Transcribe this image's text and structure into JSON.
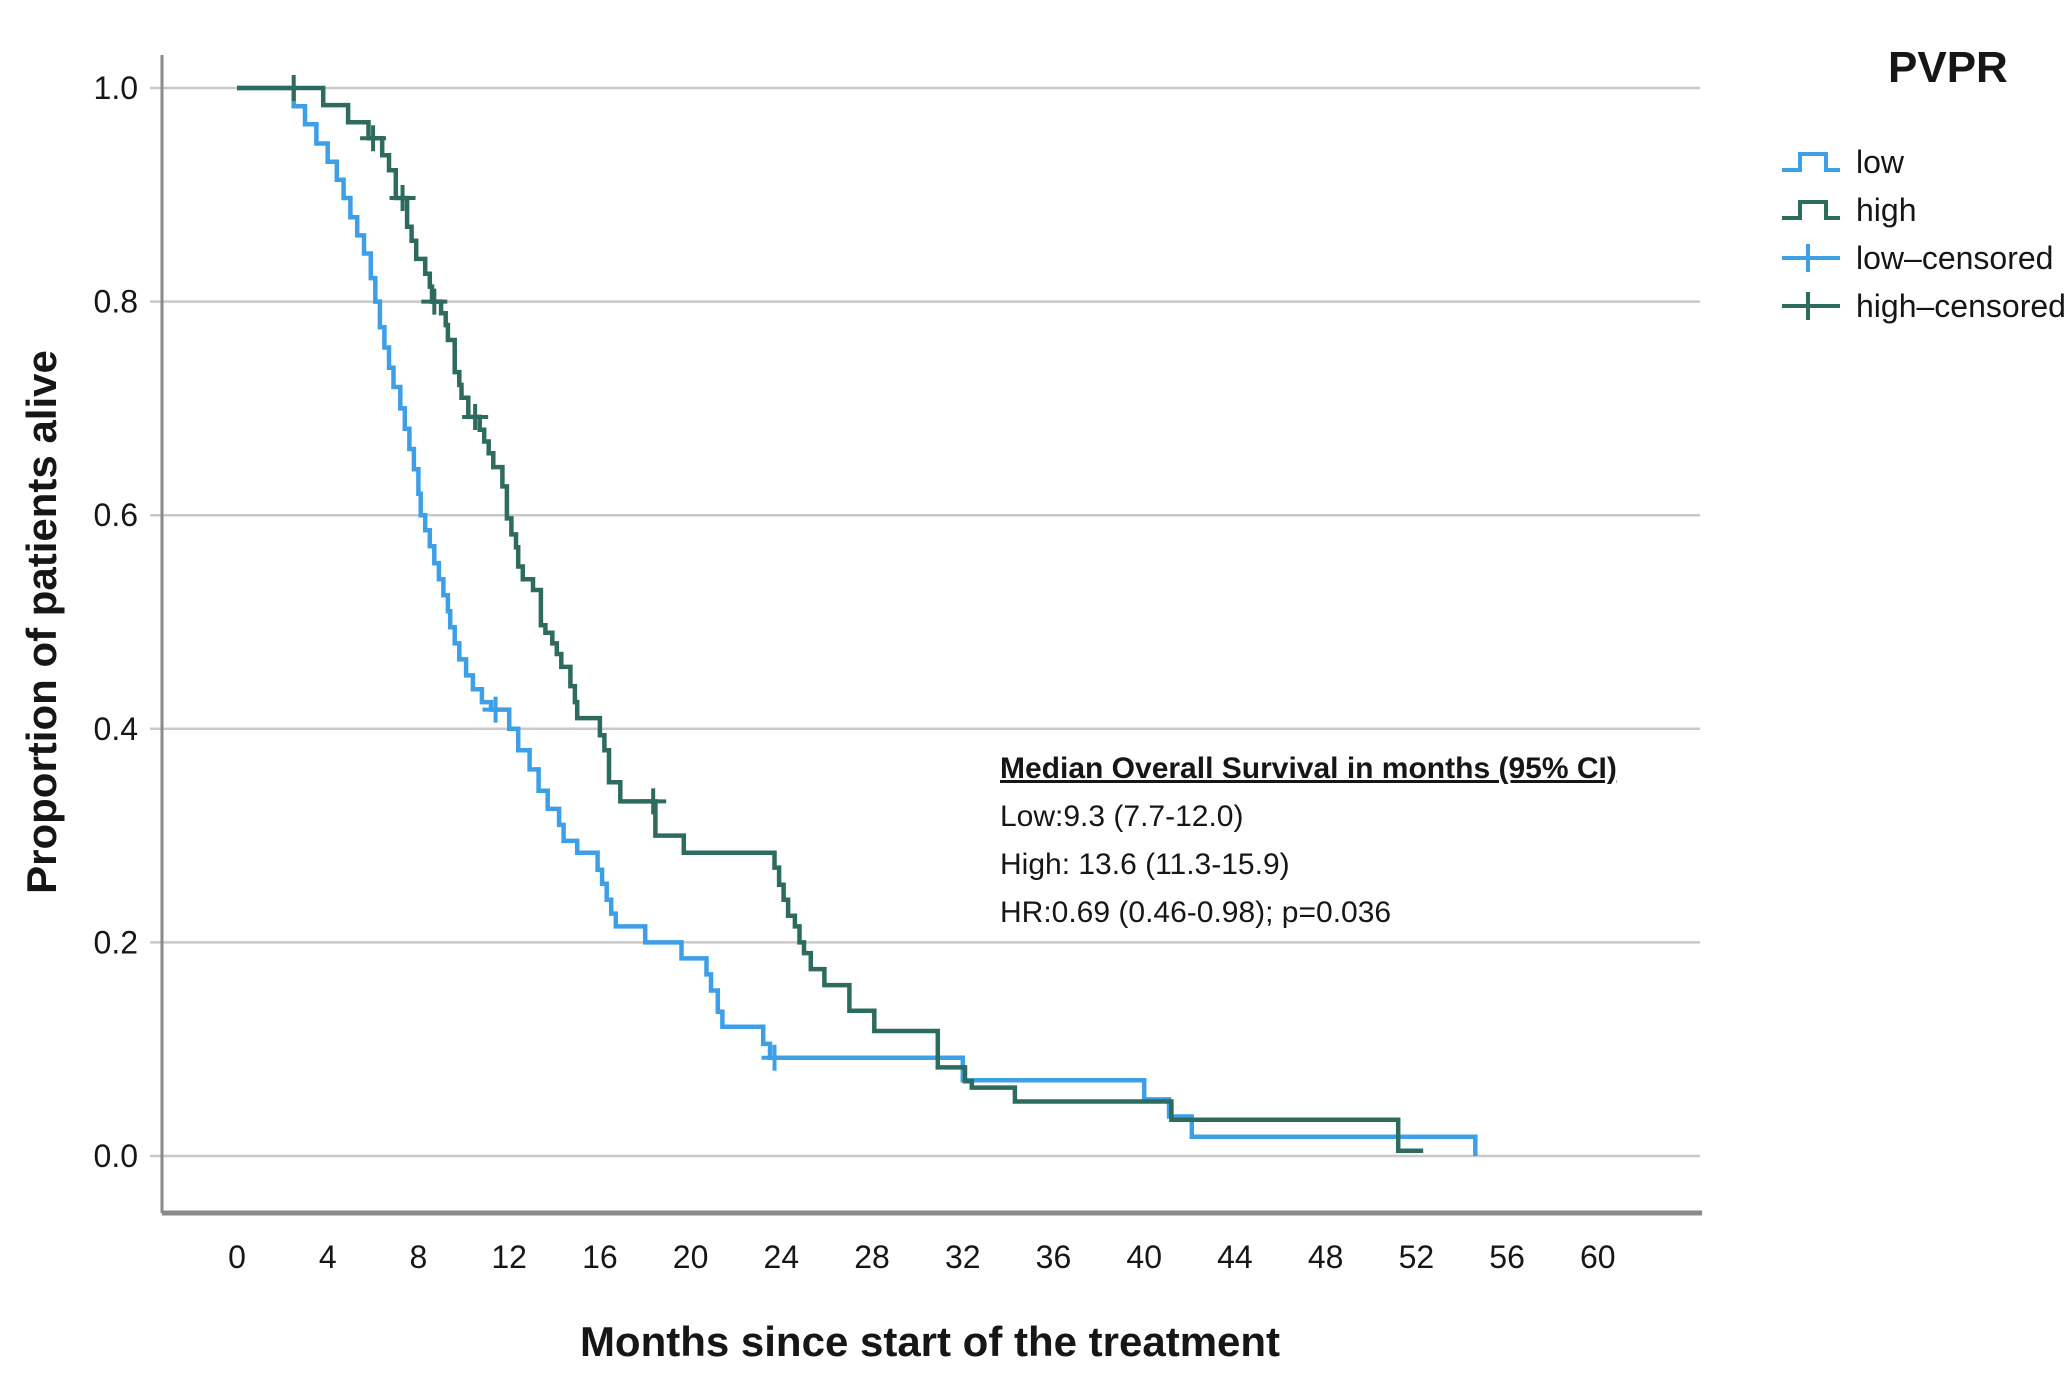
{
  "axes": {
    "x_title": "Months since start of the treatment",
    "y_title": "Proportion of patients alive"
  },
  "legend": {
    "title": "PVPR",
    "items": [
      {
        "label": "low",
        "type": "step",
        "color": "#3d9fe8"
      },
      {
        "label": "high",
        "type": "step",
        "color": "#2e6b5f"
      },
      {
        "label": "low–censored",
        "type": "plus",
        "color": "#3d9fe8"
      },
      {
        "label": "high–censored",
        "type": "plus",
        "color": "#2e6b5f"
      }
    ]
  },
  "annotation": {
    "title": "Median Overall Survival in months (95% CI)",
    "lines": [
      "Low:9.3  (7.7-12.0)",
      "High: 13.6 (11.3-15.9)",
      "HR:0.69 (0.46-0.98); p=0.036"
    ]
  },
  "chart_data": {
    "type": "line",
    "subtype": "kaplan-meier-step",
    "title": "",
    "xlabel": "Months since start of the treatment",
    "ylabel": "Proportion of patients alive",
    "xlim": [
      0,
      64
    ],
    "ylim": [
      0.0,
      1.0
    ],
    "xticks": [
      0,
      4,
      8,
      12,
      16,
      20,
      24,
      28,
      32,
      36,
      40,
      44,
      48,
      52,
      56,
      60
    ],
    "yticks": [
      0.0,
      0.2,
      0.4,
      0.6,
      0.8,
      1.0
    ],
    "ytick_labels": [
      "0.0",
      "0.2",
      "0.4",
      "0.6",
      "0.8",
      "1.0"
    ],
    "grid": "horizontal",
    "legend_position": "right",
    "colors": {
      "low": "#3d9fe8",
      "high": "#2e6b5f",
      "grid": "#c9c9c9",
      "frame": "#8a8a8a"
    },
    "series": [
      {
        "name": "low",
        "median_os_months": 9.3,
        "ci95": [
          7.7,
          12.0
        ],
        "steps": [
          [
            0,
            1.0
          ],
          [
            2.5,
            0.983
          ],
          [
            3.0,
            0.966
          ],
          [
            3.5,
            0.948
          ],
          [
            4.0,
            0.931
          ],
          [
            4.4,
            0.914
          ],
          [
            4.7,
            0.897
          ],
          [
            5.0,
            0.879
          ],
          [
            5.3,
            0.862
          ],
          [
            5.6,
            0.845
          ],
          [
            5.9,
            0.822
          ],
          [
            6.1,
            0.8
          ],
          [
            6.3,
            0.776
          ],
          [
            6.5,
            0.757
          ],
          [
            6.7,
            0.738
          ],
          [
            6.9,
            0.72
          ],
          [
            7.2,
            0.7
          ],
          [
            7.4,
            0.681
          ],
          [
            7.6,
            0.662
          ],
          [
            7.8,
            0.643
          ],
          [
            8.0,
            0.62
          ],
          [
            8.1,
            0.6
          ],
          [
            8.3,
            0.586
          ],
          [
            8.5,
            0.571
          ],
          [
            8.7,
            0.555
          ],
          [
            8.9,
            0.54
          ],
          [
            9.1,
            0.525
          ],
          [
            9.3,
            0.51
          ],
          [
            9.4,
            0.495
          ],
          [
            9.6,
            0.48
          ],
          [
            9.8,
            0.465
          ],
          [
            10.1,
            0.45
          ],
          [
            10.4,
            0.437
          ],
          [
            10.8,
            0.425
          ],
          [
            11.2,
            0.418
          ],
          [
            12.0,
            0.4
          ],
          [
            12.4,
            0.38
          ],
          [
            12.9,
            0.362
          ],
          [
            13.3,
            0.342
          ],
          [
            13.7,
            0.325
          ],
          [
            14.2,
            0.31
          ],
          [
            14.4,
            0.295
          ],
          [
            15.0,
            0.284
          ],
          [
            15.9,
            0.268
          ],
          [
            16.1,
            0.255
          ],
          [
            16.3,
            0.24
          ],
          [
            16.5,
            0.227
          ],
          [
            16.7,
            0.215
          ],
          [
            18.0,
            0.2
          ],
          [
            19.6,
            0.185
          ],
          [
            20.7,
            0.17
          ],
          [
            20.9,
            0.155
          ],
          [
            21.2,
            0.135
          ],
          [
            21.4,
            0.121
          ],
          [
            23.2,
            0.105
          ],
          [
            23.5,
            0.092
          ],
          [
            32.0,
            0.071
          ],
          [
            40.0,
            0.053
          ],
          [
            41.1,
            0.037
          ],
          [
            42.1,
            0.018
          ],
          [
            54.6,
            0.0
          ]
        ],
        "censored": [
          [
            11.4,
            0.418
          ],
          [
            23.7,
            0.092
          ]
        ]
      },
      {
        "name": "high",
        "median_os_months": 13.6,
        "ci95": [
          11.3,
          15.9
        ],
        "steps": [
          [
            0,
            1.0
          ],
          [
            3.8,
            0.984
          ],
          [
            4.9,
            0.968
          ],
          [
            5.8,
            0.953
          ],
          [
            6.4,
            0.937
          ],
          [
            6.7,
            0.923
          ],
          [
            7.0,
            0.897
          ],
          [
            7.5,
            0.87
          ],
          [
            7.7,
            0.857
          ],
          [
            7.9,
            0.84
          ],
          [
            8.3,
            0.826
          ],
          [
            8.5,
            0.814
          ],
          [
            8.6,
            0.8
          ],
          [
            9.0,
            0.789
          ],
          [
            9.2,
            0.778
          ],
          [
            9.3,
            0.764
          ],
          [
            9.6,
            0.734
          ],
          [
            9.8,
            0.722
          ],
          [
            9.9,
            0.71
          ],
          [
            10.2,
            0.692
          ],
          [
            10.7,
            0.68
          ],
          [
            10.9,
            0.669
          ],
          [
            11.1,
            0.658
          ],
          [
            11.3,
            0.645
          ],
          [
            11.7,
            0.627
          ],
          [
            11.9,
            0.597
          ],
          [
            12.1,
            0.582
          ],
          [
            12.3,
            0.57
          ],
          [
            12.4,
            0.552
          ],
          [
            12.6,
            0.54
          ],
          [
            13.05,
            0.53
          ],
          [
            13.4,
            0.497
          ],
          [
            13.6,
            0.49
          ],
          [
            13.9,
            0.48
          ],
          [
            14.1,
            0.47
          ],
          [
            14.3,
            0.458
          ],
          [
            14.7,
            0.44
          ],
          [
            14.9,
            0.425
          ],
          [
            15.0,
            0.41
          ],
          [
            16.0,
            0.394
          ],
          [
            16.2,
            0.38
          ],
          [
            16.4,
            0.35
          ],
          [
            16.9,
            0.332
          ],
          [
            18.45,
            0.3
          ],
          [
            19.7,
            0.284
          ],
          [
            23.7,
            0.27
          ],
          [
            23.9,
            0.254
          ],
          [
            24.1,
            0.24
          ],
          [
            24.3,
            0.225
          ],
          [
            24.6,
            0.215
          ],
          [
            24.8,
            0.2
          ],
          [
            25.0,
            0.19
          ],
          [
            25.3,
            0.175
          ],
          [
            25.9,
            0.16
          ],
          [
            27.0,
            0.136
          ],
          [
            28.1,
            0.117
          ],
          [
            30.9,
            0.083
          ],
          [
            32.1,
            0.07
          ],
          [
            32.4,
            0.064
          ],
          [
            34.3,
            0.051
          ],
          [
            41.2,
            0.034
          ],
          [
            51.2,
            0.005
          ],
          [
            52.3,
            0.005
          ]
        ],
        "censored": [
          [
            2.5,
            1.0
          ],
          [
            6.0,
            0.953
          ],
          [
            7.3,
            0.897
          ],
          [
            8.7,
            0.8
          ],
          [
            10.5,
            0.692
          ],
          [
            18.35,
            0.332
          ]
        ]
      }
    ],
    "hazard_ratio": {
      "hr": 0.69,
      "ci95": [
        0.46,
        0.98
      ],
      "p": 0.036
    }
  }
}
